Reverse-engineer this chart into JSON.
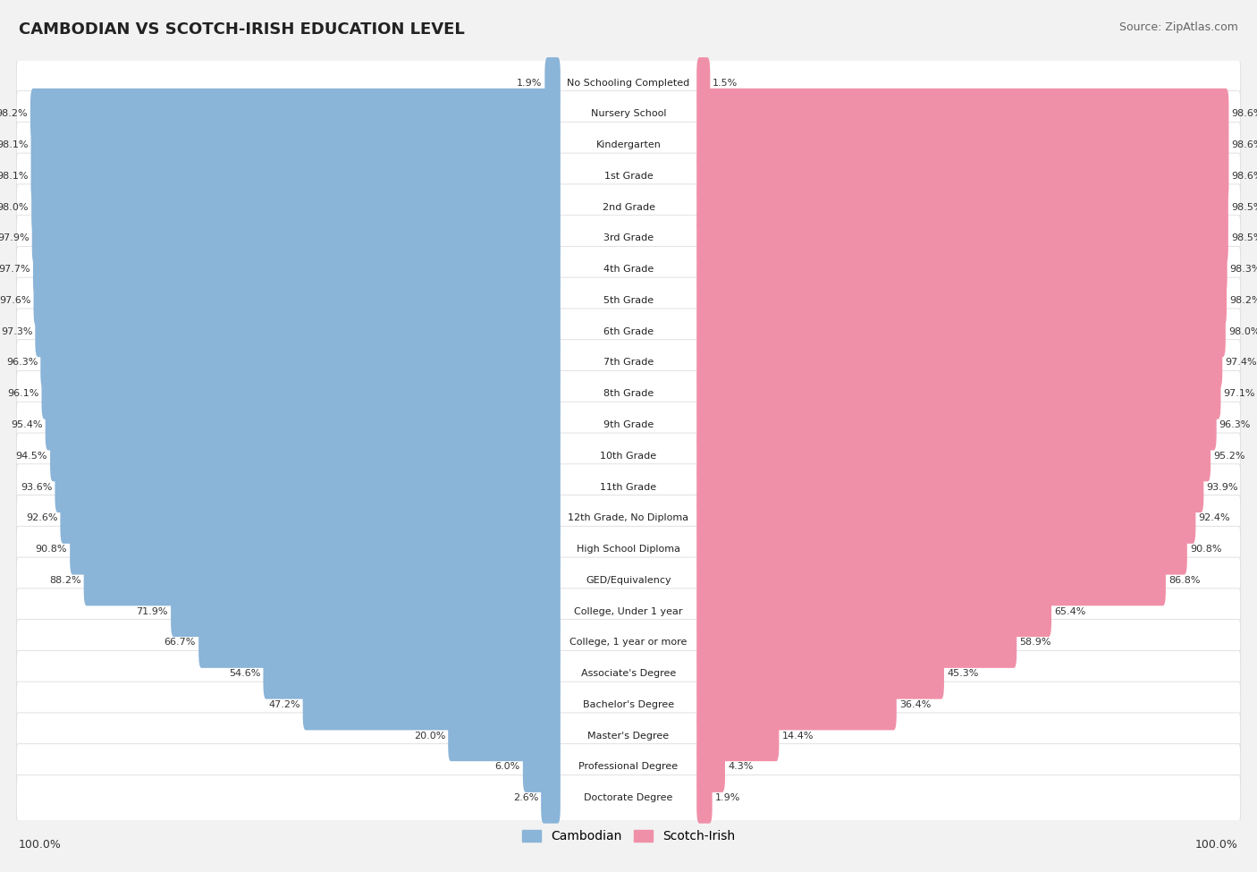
{
  "title": "CAMBODIAN VS SCOTCH-IRISH EDUCATION LEVEL",
  "source": "Source: ZipAtlas.com",
  "categories": [
    "No Schooling Completed",
    "Nursery School",
    "Kindergarten",
    "1st Grade",
    "2nd Grade",
    "3rd Grade",
    "4th Grade",
    "5th Grade",
    "6th Grade",
    "7th Grade",
    "8th Grade",
    "9th Grade",
    "10th Grade",
    "11th Grade",
    "12th Grade, No Diploma",
    "High School Diploma",
    "GED/Equivalency",
    "College, Under 1 year",
    "College, 1 year or more",
    "Associate's Degree",
    "Bachelor's Degree",
    "Master's Degree",
    "Professional Degree",
    "Doctorate Degree"
  ],
  "cambodian": [
    1.9,
    98.2,
    98.1,
    98.1,
    98.0,
    97.9,
    97.7,
    97.6,
    97.3,
    96.3,
    96.1,
    95.4,
    94.5,
    93.6,
    92.6,
    90.8,
    88.2,
    71.9,
    66.7,
    54.6,
    47.2,
    20.0,
    6.0,
    2.6
  ],
  "scotch_irish": [
    1.5,
    98.6,
    98.6,
    98.6,
    98.5,
    98.5,
    98.3,
    98.2,
    98.0,
    97.4,
    97.1,
    96.3,
    95.2,
    93.9,
    92.4,
    90.8,
    86.8,
    65.4,
    58.9,
    45.3,
    36.4,
    14.4,
    4.3,
    1.9
  ],
  "cambodian_color": "#8ab4d8",
  "scotch_irish_color": "#f090a8",
  "background_color": "#f2f2f2",
  "row_bg_color": "#ffffff",
  "row_border_color": "#dddddd",
  "legend_cambodian": "Cambodian",
  "legend_scotch_irish": "Scotch-Irish",
  "axis_label_left": "100.0%",
  "axis_label_right": "100.0%",
  "title_fontsize": 13,
  "source_fontsize": 9,
  "label_fontsize": 8,
  "value_fontsize": 8
}
